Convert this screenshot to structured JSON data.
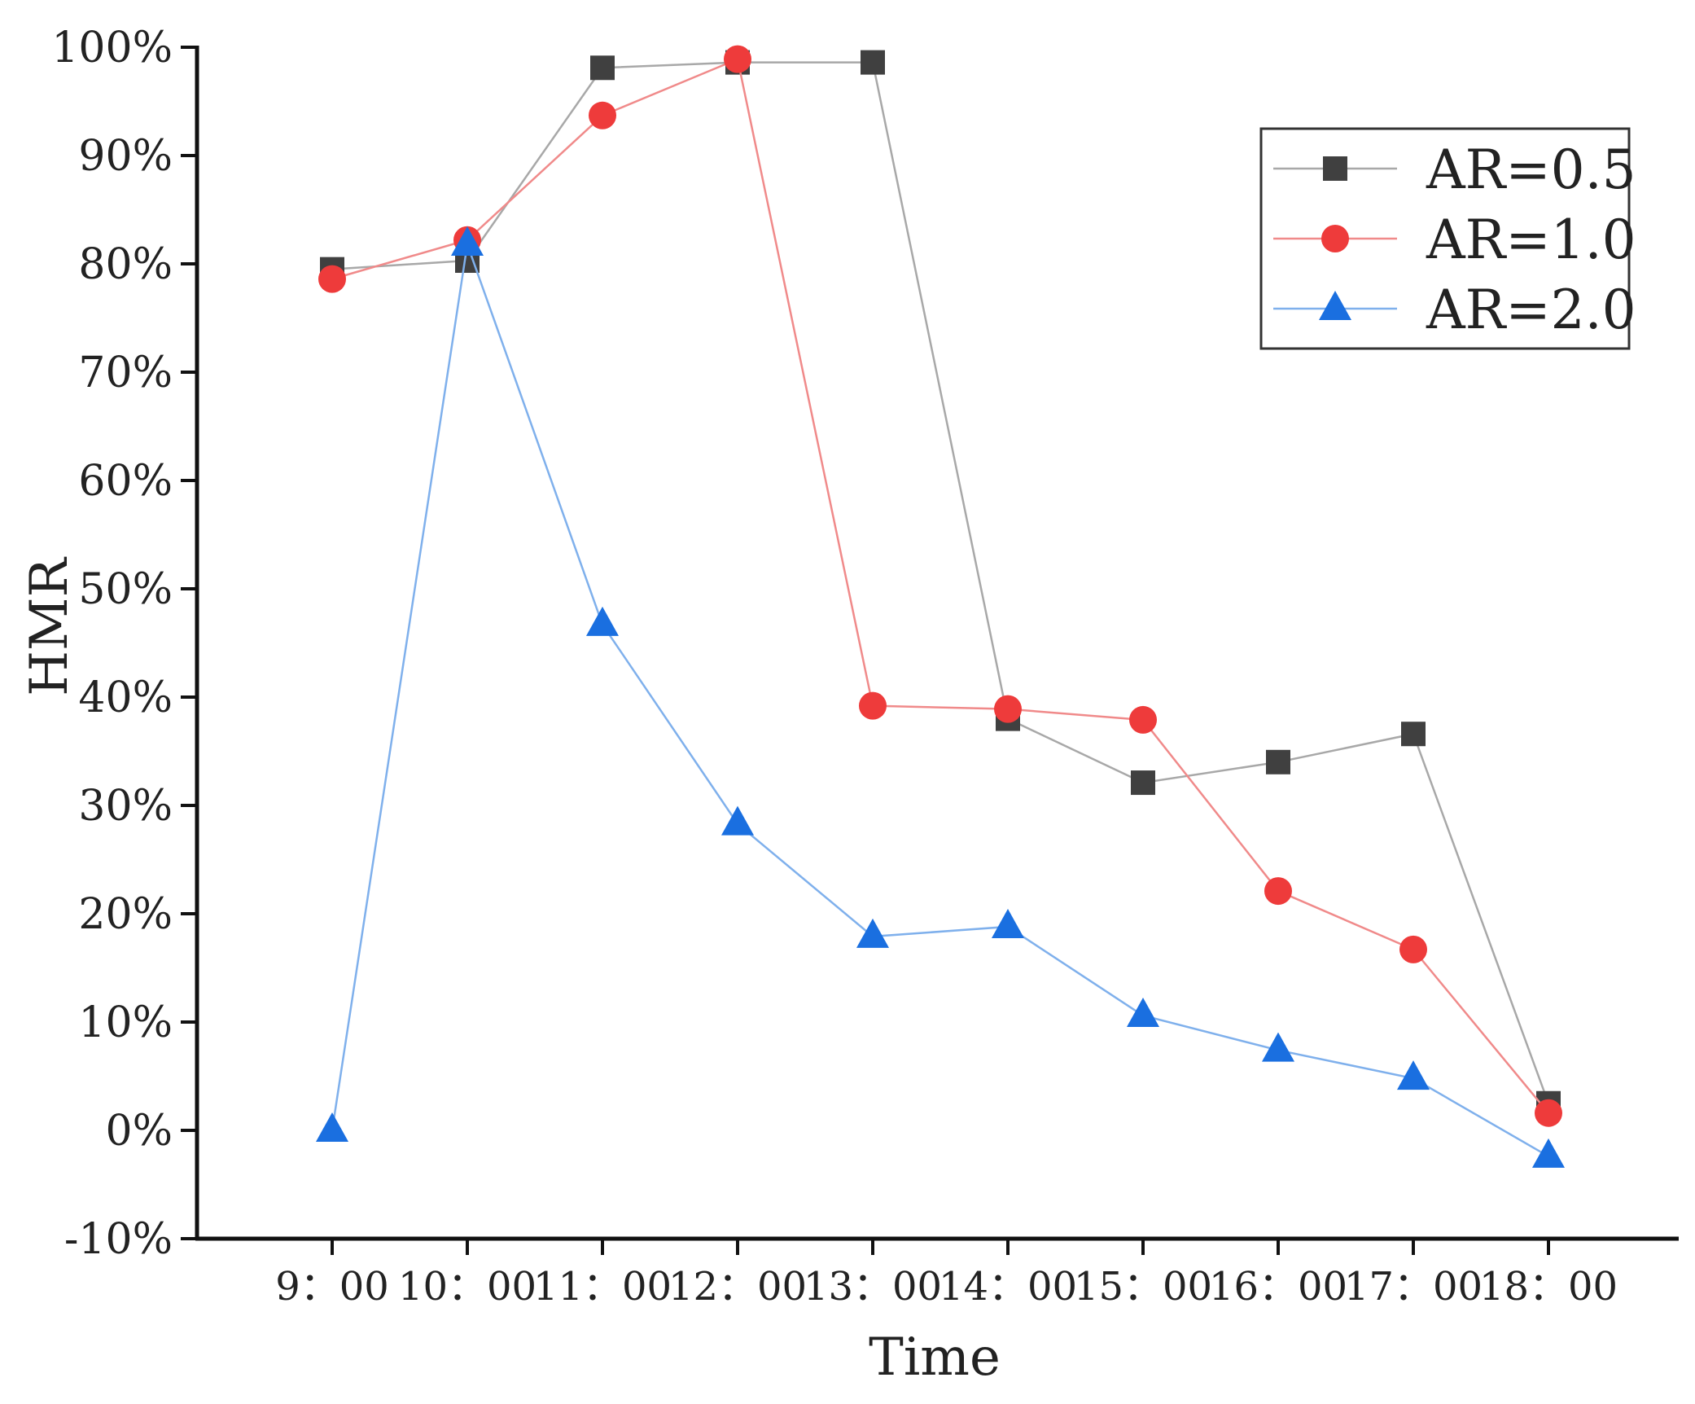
{
  "chart_data": {
    "type": "line",
    "title": "",
    "xlabel": "Time",
    "ylabel": "HMR",
    "categories": [
      "9：00",
      "10：00",
      "11：00",
      "12：00",
      "13：00",
      "14：00",
      "15：00",
      "16：00",
      "17：00",
      "18：00"
    ],
    "ylim": [
      -10,
      100
    ],
    "yticks": [
      -10,
      0,
      10,
      20,
      30,
      40,
      50,
      60,
      70,
      80,
      90,
      100
    ],
    "ytick_labels": [
      "-10%",
      "0%",
      "10%",
      "20%",
      "30%",
      "40%",
      "50%",
      "60%",
      "70%",
      "80%",
      "90%",
      "100%"
    ],
    "grid": false,
    "legend_position": "top-right",
    "series": [
      {
        "name": "AR=0.5",
        "marker": "square",
        "color": "#404040",
        "line_color": "#a8a8a8",
        "values": [
          79.5,
          80.3,
          98.1,
          98.6,
          98.6,
          38.0,
          32.1,
          34.0,
          36.6,
          2.5
        ]
      },
      {
        "name": "AR=1.0",
        "marker": "circle",
        "color": "#ee3b3b",
        "line_color": "#f08a8a",
        "values": [
          78.6,
          82.2,
          93.7,
          98.9,
          39.2,
          38.9,
          37.9,
          22.1,
          16.7,
          1.6
        ]
      },
      {
        "name": "AR=2.0",
        "marker": "triangle",
        "color": "#1a6fe0",
        "line_color": "#7fb0ec",
        "values": [
          0.0,
          81.8,
          46.7,
          28.3,
          17.9,
          18.8,
          10.6,
          7.4,
          4.8,
          -2.4
        ]
      }
    ]
  }
}
